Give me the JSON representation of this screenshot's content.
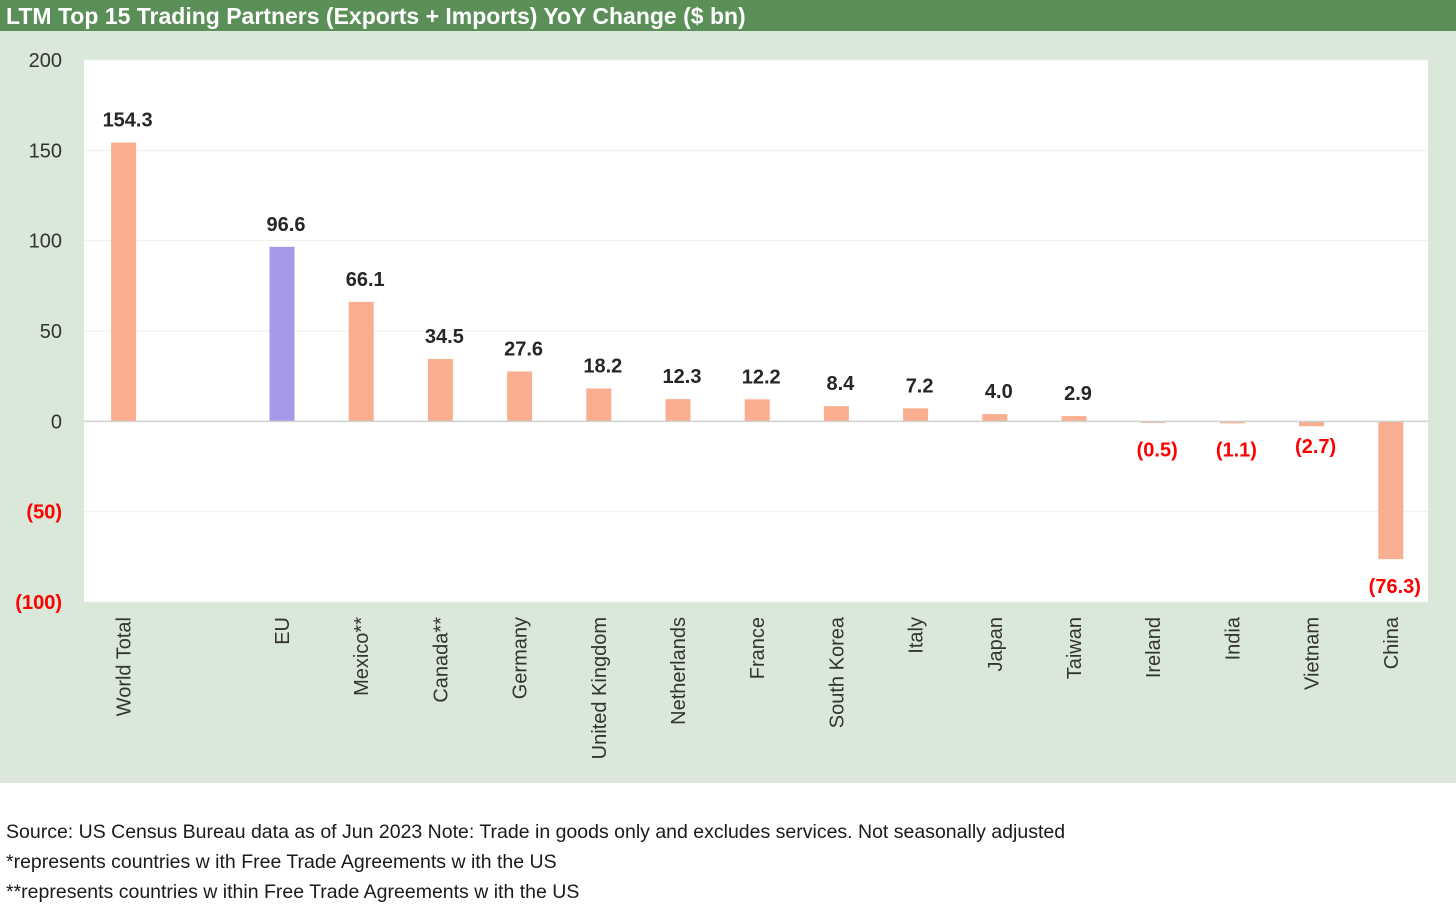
{
  "title": "LTM Top 15 Trading Partners (Exports + Imports) YoY Change ($ bn)",
  "colors": {
    "title_bg": "#5b8f58",
    "panel_bg": "#d9e8d8",
    "plot_bg": "#ffffff",
    "bar_default": "#f9ae90",
    "bar_highlight": "#a898ec",
    "negative_label": "#ff0000",
    "positive_label": "#262626"
  },
  "chart_data": {
    "type": "bar",
    "title": "LTM Top 15 Trading Partners (Exports + Imports) YoY Change ($ bn)",
    "xlabel": "",
    "ylabel": "",
    "ylim": [
      -100,
      200
    ],
    "yticks": [
      200,
      150,
      100,
      50,
      0,
      -50,
      -100
    ],
    "ytick_labels": [
      "200",
      "150",
      "100",
      "50",
      "0",
      "(50)",
      "(100)"
    ],
    "categories": [
      "World Total",
      "",
      "EU",
      "Mexico**",
      "Canada**",
      "Germany",
      "United Kingdom",
      "Netherlands",
      "France",
      "South Korea",
      "Italy",
      "Japan",
      "Taiwan",
      "Ireland",
      "India",
      "Vietnam",
      "China"
    ],
    "values": [
      154.3,
      null,
      96.6,
      66.1,
      34.5,
      27.6,
      18.2,
      12.3,
      12.2,
      8.4,
      7.2,
      4.0,
      2.9,
      -0.5,
      -1.1,
      -2.7,
      -76.3
    ],
    "data_labels": [
      "154.3",
      "",
      "96.6",
      "66.1",
      "34.5",
      "27.6",
      "18.2",
      "12.3",
      "12.2",
      "8.4",
      "7.2",
      "4.0",
      "2.9",
      "(0.5)",
      "(1.1)",
      "(2.7)",
      "(76.3)"
    ],
    "highlight_category": "EU",
    "grid": true,
    "legend": "none"
  },
  "footnotes": [
    "Source: US Census Bureau data as of Jun 2023 Note: Trade in goods only and excludes services. Not seasonally adjusted",
    "*represents countries w ith Free Trade Agreements w ith the US",
    "**represents countries w ithin Free Trade Agreements w ith the US"
  ]
}
